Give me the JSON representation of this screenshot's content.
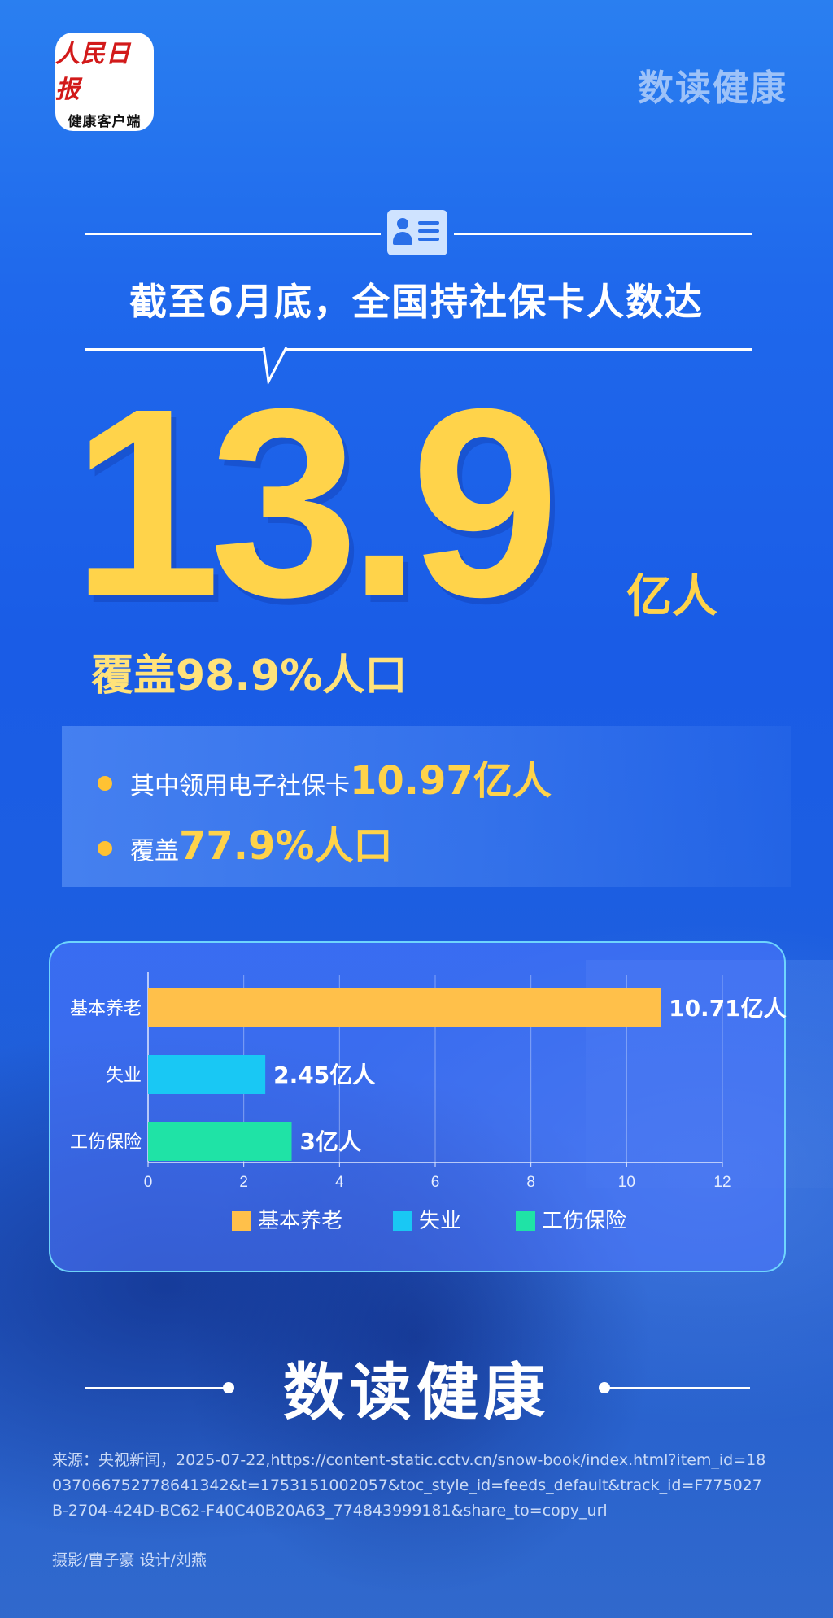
{
  "header": {
    "logo_line1": "人民日报",
    "logo_line2": "健康客户端",
    "brand": "数读健康"
  },
  "headline": "截至6月底，全国持社保卡人数达",
  "main_stat": {
    "value": "13.9",
    "unit": "亿人",
    "coverage": "覆盖98.9%人口"
  },
  "sub_stats": [
    {
      "label": "其中领用电子社保卡",
      "value": "10.97亿人"
    },
    {
      "label": "覆盖",
      "value": "77.9%人口"
    }
  ],
  "chart_data": {
    "type": "bar",
    "orientation": "horizontal",
    "categories": [
      "基本养老",
      "失业",
      "工伤保险"
    ],
    "values": [
      10.71,
      2.45,
      3
    ],
    "value_labels": [
      "10.71亿人",
      "2.45亿人",
      "3亿人"
    ],
    "colors": [
      "#ffc04a",
      "#19c8f4",
      "#1fe3a6"
    ],
    "xlim": [
      0,
      12
    ],
    "xticks": [
      0,
      2,
      4,
      6,
      8,
      10,
      12
    ],
    "grid": true,
    "legend": {
      "placement": "bottom",
      "entries": [
        "基本养老",
        "失业",
        "工伤保险"
      ]
    }
  },
  "footer": {
    "title": "数读健康",
    "source": "来源：央视新闻，2025-07-22,https://content-static.cctv.cn/snow-book/index.html?item_id=18037066752778641342&t=1753151002057&toc_style_id=feeds_default&track_id=F775027B-2704-424D-BC62-F40C40B20A63_774843999181&share_to=copy_url",
    "credit": "摄影/曹子豪 设计/刘燕"
  }
}
